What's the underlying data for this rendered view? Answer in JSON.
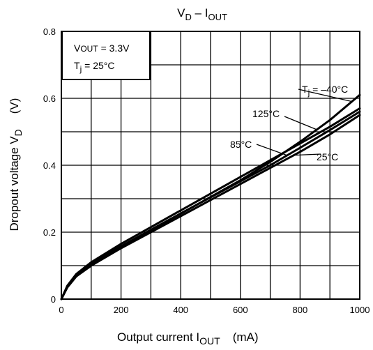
{
  "chart_data": {
    "type": "line",
    "title": {
      "main": "V",
      "main_sub": "D",
      "dash": " – I",
      "dash_sub": "OUT"
    },
    "xlabel": {
      "text": "Output current  I",
      "sub": "OUT",
      "unit": "(mA)"
    },
    "ylabel": {
      "text": "Dropout voltage  V",
      "sub": "D",
      "unit": "(V)"
    },
    "xlim": [
      0,
      1000
    ],
    "ylim": [
      0,
      0.8
    ],
    "xticks": [
      0,
      200,
      400,
      600,
      800,
      1000
    ],
    "yticks": [
      0,
      0.2,
      0.4,
      0.6,
      0.8
    ],
    "x_minor_step": 100,
    "y_minor_step": 0.1,
    "grid": true,
    "conditions": {
      "line1_main": "V",
      "line1_sub": "OUT",
      "line1_rest": " = 3.3V",
      "line2_main": "T",
      "line2_sub": "j",
      "line2_rest": " = 25°C"
    },
    "series": [
      {
        "name": "Tj = –40°C",
        "x": [
          0,
          20,
          50,
          100,
          200,
          300,
          400,
          500,
          600,
          700,
          800,
          900,
          1000
        ],
        "y": [
          0,
          0.035,
          0.068,
          0.1,
          0.155,
          0.205,
          0.255,
          0.305,
          0.355,
          0.41,
          0.47,
          0.535,
          0.61
        ]
      },
      {
        "name": "125°C",
        "x": [
          0,
          20,
          50,
          100,
          200,
          300,
          400,
          500,
          600,
          700,
          800,
          900,
          1000
        ],
        "y": [
          0,
          0.04,
          0.075,
          0.11,
          0.165,
          0.215,
          0.265,
          0.315,
          0.365,
          0.415,
          0.465,
          0.515,
          0.57
        ]
      },
      {
        "name": "85°C",
        "x": [
          0,
          20,
          50,
          100,
          200,
          300,
          400,
          500,
          600,
          700,
          800,
          900,
          1000
        ],
        "y": [
          0,
          0.038,
          0.072,
          0.105,
          0.158,
          0.207,
          0.256,
          0.304,
          0.352,
          0.4,
          0.452,
          0.505,
          0.56
        ]
      },
      {
        "name": "25°C",
        "x": [
          0,
          20,
          50,
          100,
          200,
          300,
          400,
          500,
          600,
          700,
          800,
          900,
          1000
        ],
        "y": [
          0,
          0.036,
          0.069,
          0.1,
          0.152,
          0.2,
          0.248,
          0.296,
          0.344,
          0.392,
          0.44,
          0.492,
          0.55
        ]
      }
    ],
    "labels": [
      {
        "series": "Tj = –40°C",
        "main": "T",
        "sub": "j",
        "rest": " = –40°C"
      },
      {
        "series": "125°C",
        "text": "125°C"
      },
      {
        "series": "85°C",
        "text": "85°C"
      },
      {
        "series": "25°C",
        "text": "25°C"
      }
    ]
  }
}
